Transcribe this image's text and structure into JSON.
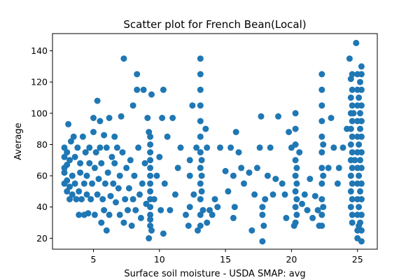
{
  "chart_data": {
    "type": "scatter",
    "title": "Scatter plot for French Bean(Local)",
    "xlabel": "Surface soil moisture - USDA SMAP: avg",
    "ylabel": "Average",
    "xlim": [
      1.9,
      26.5
    ],
    "ylim": [
      13,
      151
    ],
    "xticks": [
      5,
      10,
      15,
      20,
      25
    ],
    "yticks": [
      20,
      40,
      60,
      80,
      100,
      120,
      140
    ],
    "grid": false,
    "marker_color": "#1f77b4",
    "points": [
      [
        2.8,
        55
      ],
      [
        2.8,
        62
      ],
      [
        2.8,
        65
      ],
      [
        2.8,
        72
      ],
      [
        2.8,
        78
      ],
      [
        3.0,
        50
      ],
      [
        3.0,
        57
      ],
      [
        3.0,
        67
      ],
      [
        3.0,
        75
      ],
      [
        3.1,
        93
      ],
      [
        3.2,
        45
      ],
      [
        3.2,
        53
      ],
      [
        3.2,
        70
      ],
      [
        3.3,
        82
      ],
      [
        3.4,
        60
      ],
      [
        3.4,
        48
      ],
      [
        3.5,
        85
      ],
      [
        3.6,
        55
      ],
      [
        3.6,
        72
      ],
      [
        3.7,
        45
      ],
      [
        3.8,
        78
      ],
      [
        3.9,
        35
      ],
      [
        3.9,
        50
      ],
      [
        4.0,
        62
      ],
      [
        4.0,
        68
      ],
      [
        4.1,
        45
      ],
      [
        4.2,
        85
      ],
      [
        4.3,
        35
      ],
      [
        4.3,
        55
      ],
      [
        4.4,
        75
      ],
      [
        4.5,
        48
      ],
      [
        4.5,
        60
      ],
      [
        4.6,
        36
      ],
      [
        4.7,
        68
      ],
      [
        4.7,
        78
      ],
      [
        4.8,
        45
      ],
      [
        4.9,
        55
      ],
      [
        5.0,
        88
      ],
      [
        5.0,
        97
      ],
      [
        5.1,
        35
      ],
      [
        5.1,
        65
      ],
      [
        5.2,
        75
      ],
      [
        5.3,
        48
      ],
      [
        5.3,
        108
      ],
      [
        5.4,
        58
      ],
      [
        5.5,
        78
      ],
      [
        5.5,
        95
      ],
      [
        5.6,
        30
      ],
      [
        5.6,
        68
      ],
      [
        5.7,
        45
      ],
      [
        5.8,
        38
      ],
      [
        5.8,
        86
      ],
      [
        5.9,
        55
      ],
      [
        6.0,
        25
      ],
      [
        6.0,
        78
      ],
      [
        6.1,
        62
      ],
      [
        6.2,
        35
      ],
      [
        6.2,
        97
      ],
      [
        6.3,
        47
      ],
      [
        6.4,
        72
      ],
      [
        6.5,
        55
      ],
      [
        6.6,
        68
      ],
      [
        6.6,
        85
      ],
      [
        6.7,
        43
      ],
      [
        6.8,
        78
      ],
      [
        6.9,
        52
      ],
      [
        7.0,
        35
      ],
      [
        7.0,
        60
      ],
      [
        7.1,
        98
      ],
      [
        7.2,
        75
      ],
      [
        7.3,
        135
      ],
      [
        7.3,
        30
      ],
      [
        7.4,
        45
      ],
      [
        7.5,
        65
      ],
      [
        7.6,
        38
      ],
      [
        7.7,
        52
      ],
      [
        7.8,
        70
      ],
      [
        7.9,
        28
      ],
      [
        8.0,
        45
      ],
      [
        8.0,
        105
      ],
      [
        8.1,
        60
      ],
      [
        8.2,
        38
      ],
      [
        8.3,
        125
      ],
      [
        8.3,
        115
      ],
      [
        8.4,
        78
      ],
      [
        8.5,
        48
      ],
      [
        8.6,
        33
      ],
      [
        8.7,
        55
      ],
      [
        8.8,
        115
      ],
      [
        8.9,
        68
      ],
      [
        9.0,
        42
      ],
      [
        9.1,
        97
      ],
      [
        9.2,
        88
      ],
      [
        9.2,
        20
      ],
      [
        9.3,
        28
      ],
      [
        9.3,
        35
      ],
      [
        9.3,
        45
      ],
      [
        9.3,
        55
      ],
      [
        9.3,
        65
      ],
      [
        9.3,
        75
      ],
      [
        9.3,
        85
      ],
      [
        9.3,
        32
      ],
      [
        9.3,
        40
      ],
      [
        9.3,
        50
      ],
      [
        9.3,
        60
      ],
      [
        9.3,
        70
      ],
      [
        9.3,
        80
      ],
      [
        9.4,
        25
      ],
      [
        9.4,
        112
      ],
      [
        9.6,
        45
      ],
      [
        9.8,
        60
      ],
      [
        10.0,
        72
      ],
      [
        10.1,
        38
      ],
      [
        10.2,
        97
      ],
      [
        10.3,
        115
      ],
      [
        10.3,
        23
      ],
      [
        10.4,
        55
      ],
      [
        10.6,
        85
      ],
      [
        10.8,
        38
      ],
      [
        11.0,
        97
      ],
      [
        11.2,
        48
      ],
      [
        11.4,
        65
      ],
      [
        11.6,
        78
      ],
      [
        12.0,
        35
      ],
      [
        12.2,
        28
      ],
      [
        12.3,
        40
      ],
      [
        12.3,
        60
      ],
      [
        12.3,
        70
      ],
      [
        12.5,
        105
      ],
      [
        12.6,
        48
      ],
      [
        12.8,
        78
      ],
      [
        12.9,
        25
      ],
      [
        13.1,
        135
      ],
      [
        13.1,
        125
      ],
      [
        13.1,
        115
      ],
      [
        13.1,
        105
      ],
      [
        13.1,
        95
      ],
      [
        13.1,
        85
      ],
      [
        13.1,
        75
      ],
      [
        13.1,
        65
      ],
      [
        13.1,
        55
      ],
      [
        13.1,
        45
      ],
      [
        13.1,
        35
      ],
      [
        13.1,
        28
      ],
      [
        13.2,
        50
      ],
      [
        13.2,
        60
      ],
      [
        13.2,
        70
      ],
      [
        13.3,
        38
      ],
      [
        13.5,
        90
      ],
      [
        13.6,
        78
      ],
      [
        13.6,
        30
      ],
      [
        13.8,
        38
      ],
      [
        14.0,
        35
      ],
      [
        14.2,
        45
      ],
      [
        14.4,
        40
      ],
      [
        14.6,
        78
      ],
      [
        15.0,
        63
      ],
      [
        15.2,
        50
      ],
      [
        15.4,
        78
      ],
      [
        15.6,
        33
      ],
      [
        15.6,
        60
      ],
      [
        15.7,
        40
      ],
      [
        15.8,
        88
      ],
      [
        16.0,
        75
      ],
      [
        16.2,
        65
      ],
      [
        16.4,
        55
      ],
      [
        16.8,
        62
      ],
      [
        17.0,
        25
      ],
      [
        17.2,
        48
      ],
      [
        17.4,
        65
      ],
      [
        17.6,
        78
      ],
      [
        17.7,
        98
      ],
      [
        17.8,
        35
      ],
      [
        17.8,
        40
      ],
      [
        17.8,
        18
      ],
      [
        17.9,
        28
      ],
      [
        18.0,
        45
      ],
      [
        18.2,
        60
      ],
      [
        18.4,
        78
      ],
      [
        18.6,
        48
      ],
      [
        18.8,
        58
      ],
      [
        19.0,
        98
      ],
      [
        19.3,
        55
      ],
      [
        19.5,
        48
      ],
      [
        19.6,
        33
      ],
      [
        19.8,
        88
      ],
      [
        20.0,
        78
      ],
      [
        20.2,
        28
      ],
      [
        20.3,
        100
      ],
      [
        20.3,
        90
      ],
      [
        20.3,
        80
      ],
      [
        20.3,
        70
      ],
      [
        20.3,
        60
      ],
      [
        20.3,
        50
      ],
      [
        20.3,
        40
      ],
      [
        20.3,
        30
      ],
      [
        20.4,
        35
      ],
      [
        20.4,
        45
      ],
      [
        20.4,
        55
      ],
      [
        20.4,
        65
      ],
      [
        20.6,
        75
      ],
      [
        20.8,
        42
      ],
      [
        21.0,
        48
      ],
      [
        21.2,
        38
      ],
      [
        21.4,
        58
      ],
      [
        21.6,
        33
      ],
      [
        21.8,
        47
      ],
      [
        22.0,
        38
      ],
      [
        22.1,
        28
      ],
      [
        22.3,
        125
      ],
      [
        22.3,
        115
      ],
      [
        22.3,
        105
      ],
      [
        22.3,
        95
      ],
      [
        22.3,
        85
      ],
      [
        22.3,
        75
      ],
      [
        22.3,
        65
      ],
      [
        22.3,
        55
      ],
      [
        22.3,
        45
      ],
      [
        22.3,
        35
      ],
      [
        22.3,
        28
      ],
      [
        22.4,
        80
      ],
      [
        22.4,
        60
      ],
      [
        22.4,
        40
      ],
      [
        22.8,
        65
      ],
      [
        23.0,
        97
      ],
      [
        23.2,
        78
      ],
      [
        23.5,
        55
      ],
      [
        23.6,
        65
      ],
      [
        23.9,
        78
      ],
      [
        24.2,
        90
      ],
      [
        24.4,
        135
      ],
      [
        24.5,
        122
      ],
      [
        24.5,
        110
      ],
      [
        24.5,
        100
      ],
      [
        24.5,
        90
      ],
      [
        24.5,
        80
      ],
      [
        24.5,
        70
      ],
      [
        24.5,
        60
      ],
      [
        24.5,
        50
      ],
      [
        24.5,
        40
      ],
      [
        24.6,
        125
      ],
      [
        24.6,
        115
      ],
      [
        24.6,
        105
      ],
      [
        24.6,
        95
      ],
      [
        24.6,
        85
      ],
      [
        24.6,
        75
      ],
      [
        24.6,
        65
      ],
      [
        24.6,
        55
      ],
      [
        24.6,
        45
      ],
      [
        24.6,
        35
      ],
      [
        24.6,
        30
      ],
      [
        24.7,
        100
      ],
      [
        24.8,
        70
      ],
      [
        24.9,
        145
      ],
      [
        25.0,
        125
      ],
      [
        25.0,
        115
      ],
      [
        25.0,
        105
      ],
      [
        25.0,
        95
      ],
      [
        25.0,
        85
      ],
      [
        25.0,
        75
      ],
      [
        25.0,
        65
      ],
      [
        25.0,
        55
      ],
      [
        25.0,
        45
      ],
      [
        25.0,
        35
      ],
      [
        25.0,
        25
      ],
      [
        25.0,
        20
      ],
      [
        25.1,
        110
      ],
      [
        25.1,
        80
      ],
      [
        25.1,
        60
      ],
      [
        25.1,
        40
      ],
      [
        25.1,
        28
      ],
      [
        25.2,
        120
      ],
      [
        25.2,
        90
      ],
      [
        25.2,
        50
      ],
      [
        25.3,
        130
      ],
      [
        25.3,
        125
      ],
      [
        25.3,
        115
      ],
      [
        25.3,
        105
      ],
      [
        25.3,
        95
      ],
      [
        25.3,
        85
      ],
      [
        25.3,
        75
      ],
      [
        25.3,
        65
      ],
      [
        25.3,
        55
      ],
      [
        25.3,
        45
      ],
      [
        25.3,
        35
      ],
      [
        25.3,
        25
      ],
      [
        25.3,
        18
      ],
      [
        25.2,
        100
      ],
      [
        25.2,
        70
      ],
      [
        25.2,
        30
      ]
    ]
  }
}
